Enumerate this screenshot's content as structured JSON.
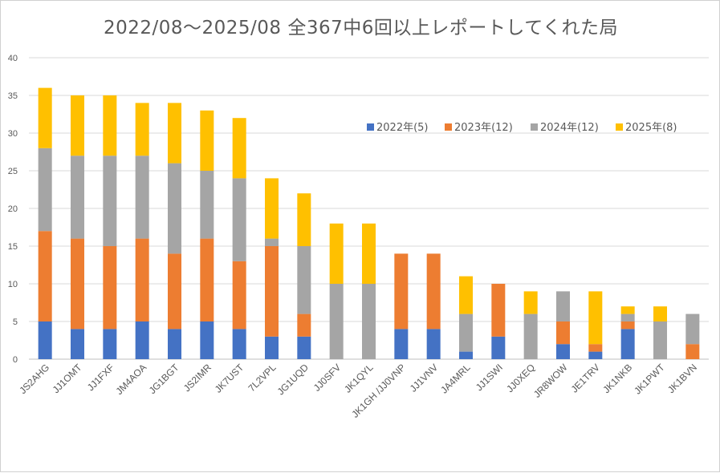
{
  "chart_data": {
    "type": "bar",
    "stacked": true,
    "title": "2022/08～2025/08 全367中6回以上レポートしてくれた局",
    "xlabel": "",
    "ylabel": "",
    "ylim": [
      0,
      40
    ],
    "yticks": [
      0,
      5,
      10,
      15,
      20,
      25,
      30,
      35,
      40
    ],
    "grid": true,
    "legend_position": "upper-right-inside",
    "categories": [
      "JS2AHG",
      "JJ1OMT",
      "JJ1FXF",
      "JM4AOA",
      "JG1BGT",
      "JS2IMR",
      "JK7UST",
      "7L2VPL",
      "JG1UQD",
      "JJ0SFV",
      "JK1QYL",
      "JK1GH /JJ0VNP",
      "JJ1VNV",
      "JA4MRL",
      "JJ1SWI",
      "JJ0XEQ",
      "JR8WOW",
      "JE1TRV",
      "JK1NKB",
      "JK1PWT",
      "JK1BVN"
    ],
    "series": [
      {
        "name": "2022年(5)",
        "color": "#4472c4",
        "values": [
          5,
          4,
          4,
          5,
          4,
          5,
          4,
          3,
          3,
          0,
          0,
          4,
          4,
          1,
          3,
          0,
          2,
          1,
          4,
          0,
          0
        ]
      },
      {
        "name": "2023年(12)",
        "color": "#ed7d31",
        "values": [
          12,
          12,
          11,
          11,
          10,
          11,
          9,
          12,
          3,
          0,
          0,
          10,
          10,
          0,
          7,
          0,
          3,
          1,
          1,
          0,
          2
        ]
      },
      {
        "name": "2024年(12)",
        "color": "#a5a5a5",
        "values": [
          11,
          11,
          12,
          11,
          12,
          9,
          11,
          1,
          9,
          10,
          10,
          0,
          0,
          5,
          0,
          6,
          4,
          0,
          1,
          5,
          4
        ]
      },
      {
        "name": "2025年(8)",
        "color": "#ffc000",
        "values": [
          8,
          8,
          8,
          7,
          8,
          8,
          8,
          8,
          7,
          8,
          8,
          0,
          0,
          5,
          0,
          3,
          0,
          7,
          1,
          2,
          0
        ]
      }
    ]
  }
}
